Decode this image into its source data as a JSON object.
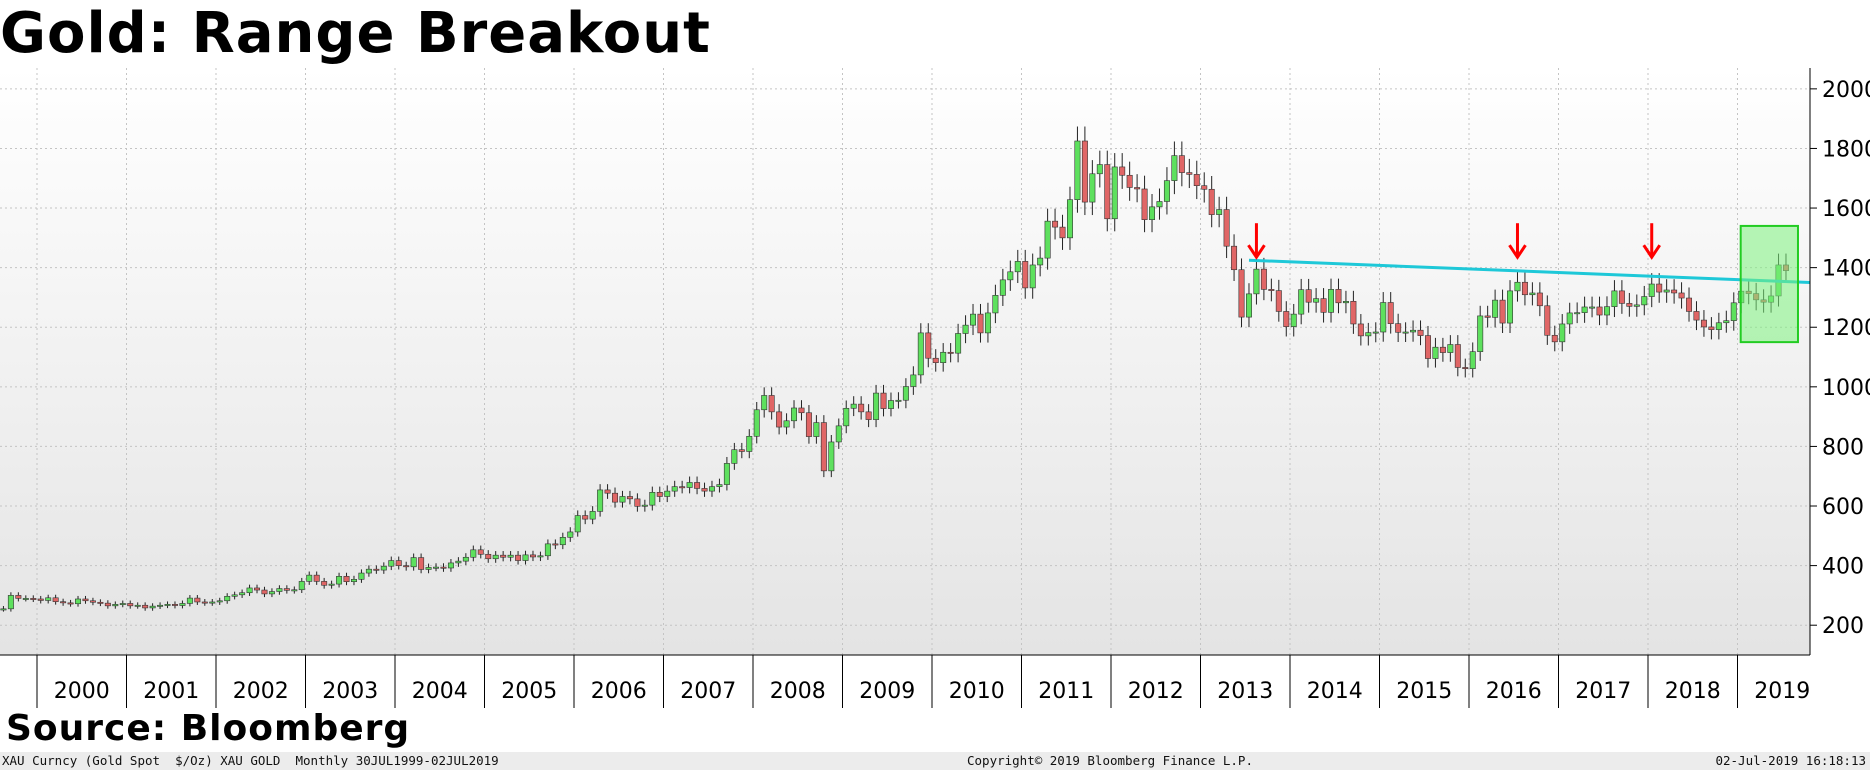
{
  "title": "Gold: Range Breakout",
  "source": "Source: Bloomberg",
  "footer": {
    "left": "XAU Curncy (Gold Spot  $/Oz) XAU GOLD  Monthly 30JUL1999-02JUL2019",
    "center": "Copyright© 2019 Bloomberg Finance L.P.",
    "right": "02-Jul-2019 16:18:13"
  },
  "colors": {
    "up": "#5ee05e",
    "down": "#e06666",
    "trendline": "#1ec8d8",
    "arrow": "#ff0000",
    "highlight": "#7ef27e",
    "highlight_border": "#22cc22"
  },
  "chart_data": {
    "type": "candlestick",
    "title": "Gold: Range Breakout",
    "frequency": "Monthly",
    "date_range": "30JUL1999-02JUL2019",
    "ylim": [
      100,
      2070
    ],
    "yticks": [
      200,
      400,
      600,
      800,
      1000,
      1200,
      1400,
      1600,
      1800,
      2000
    ],
    "y_axis_side": "right",
    "x_labels": [
      "2000",
      "2001",
      "2002",
      "2003",
      "2004",
      "2005",
      "2006",
      "2007",
      "2008",
      "2009",
      "2010",
      "2011",
      "2012",
      "2013",
      "2014",
      "2015",
      "2016",
      "2017",
      "2018",
      "2019"
    ],
    "grid": true,
    "close_series": [
      {
        "year": 1999,
        "close": [
          255,
          255,
          300,
          290,
          290,
          288
        ]
      },
      {
        "year": 2000,
        "close": [
          283,
          292,
          279,
          275,
          272,
          288,
          282,
          277,
          274,
          265,
          270,
          273
        ]
      },
      {
        "year": 2001,
        "close": [
          265,
          267,
          258,
          264,
          267,
          270,
          266,
          273,
          291,
          278,
          275,
          278
        ]
      },
      {
        "year": 2002,
        "close": [
          282,
          297,
          302,
          309,
          325,
          318,
          305,
          313,
          323,
          317,
          319,
          347
        ]
      },
      {
        "year": 2003,
        "close": [
          368,
          347,
          334,
          338,
          364,
          346,
          354,
          375,
          388,
          385,
          398,
          417
        ]
      },
      {
        "year": 2004,
        "close": [
          400,
          396,
          427,
          387,
          394,
          395,
          392,
          409,
          415,
          428,
          453,
          438
        ]
      },
      {
        "year": 2005,
        "close": [
          423,
          435,
          428,
          435,
          417,
          436,
          429,
          433,
          473,
          470,
          495,
          513
        ]
      },
      {
        "year": 2006,
        "close": [
          568,
          556,
          582,
          654,
          643,
          613,
          632,
          624,
          599,
          603,
          646,
          632
        ]
      },
      {
        "year": 2007,
        "close": [
          650,
          665,
          662,
          679,
          659,
          650,
          665,
          672,
          743,
          789,
          783,
          834
        ]
      },
      {
        "year": 2008,
        "close": [
          923,
          971,
          916,
          865,
          886,
          929,
          913,
          833,
          880,
          718,
          815,
          869
        ]
      },
      {
        "year": 2009,
        "close": [
          928,
          942,
          916,
          890,
          979,
          927,
          954,
          955,
          1001,
          1040,
          1181,
          1096
        ]
      },
      {
        "year": 2010,
        "close": [
          1081,
          1116,
          1113,
          1179,
          1207,
          1244,
          1181,
          1248,
          1307,
          1359,
          1386,
          1421
        ]
      },
      {
        "year": 2011,
        "close": [
          1332,
          1409,
          1432,
          1556,
          1536,
          1500,
          1628,
          1825,
          1620,
          1715,
          1746,
          1564
        ]
      },
      {
        "year": 2012,
        "close": [
          1738,
          1710,
          1669,
          1664,
          1561,
          1604,
          1622,
          1692,
          1776,
          1719,
          1713,
          1675
        ]
      },
      {
        "year": 2013,
        "close": [
          1663,
          1578,
          1595,
          1472,
          1393,
          1234,
          1312,
          1395,
          1327,
          1323,
          1253,
          1202
        ]
      },
      {
        "year": 2014,
        "close": [
          1244,
          1326,
          1284,
          1296,
          1250,
          1327,
          1282,
          1287,
          1211,
          1171,
          1182,
          1184
        ]
      },
      {
        "year": 2015,
        "close": [
          1283,
          1212,
          1183,
          1184,
          1190,
          1172,
          1095,
          1133,
          1115,
          1142,
          1065,
          1061
        ]
      },
      {
        "year": 2016,
        "close": [
          1118,
          1238,
          1233,
          1291,
          1214,
          1322,
          1351,
          1309,
          1315,
          1272,
          1173,
          1151
        ]
      },
      {
        "year": 2017,
        "close": [
          1211,
          1248,
          1249,
          1268,
          1268,
          1241,
          1269,
          1322,
          1280,
          1270,
          1275,
          1303
        ]
      },
      {
        "year": 2018,
        "close": [
          1345,
          1318,
          1325,
          1315,
          1298,
          1253,
          1224,
          1201,
          1192,
          1215,
          1222,
          1282
        ]
      },
      {
        "year": 2019,
        "close": [
          1321,
          1313,
          1292,
          1284,
          1305,
          1409,
          1390
        ]
      }
    ],
    "annotations": {
      "resistance_line": {
        "start": "2013-07",
        "end": "2019-07",
        "y_start": 1425,
        "y_end": 1350
      },
      "arrows_at": [
        "2013-08",
        "2016-07",
        "2018-01"
      ],
      "highlight_box": {
        "from": "2019-02",
        "to": "2019-07",
        "y_range": [
          1150,
          1540
        ]
      }
    }
  }
}
